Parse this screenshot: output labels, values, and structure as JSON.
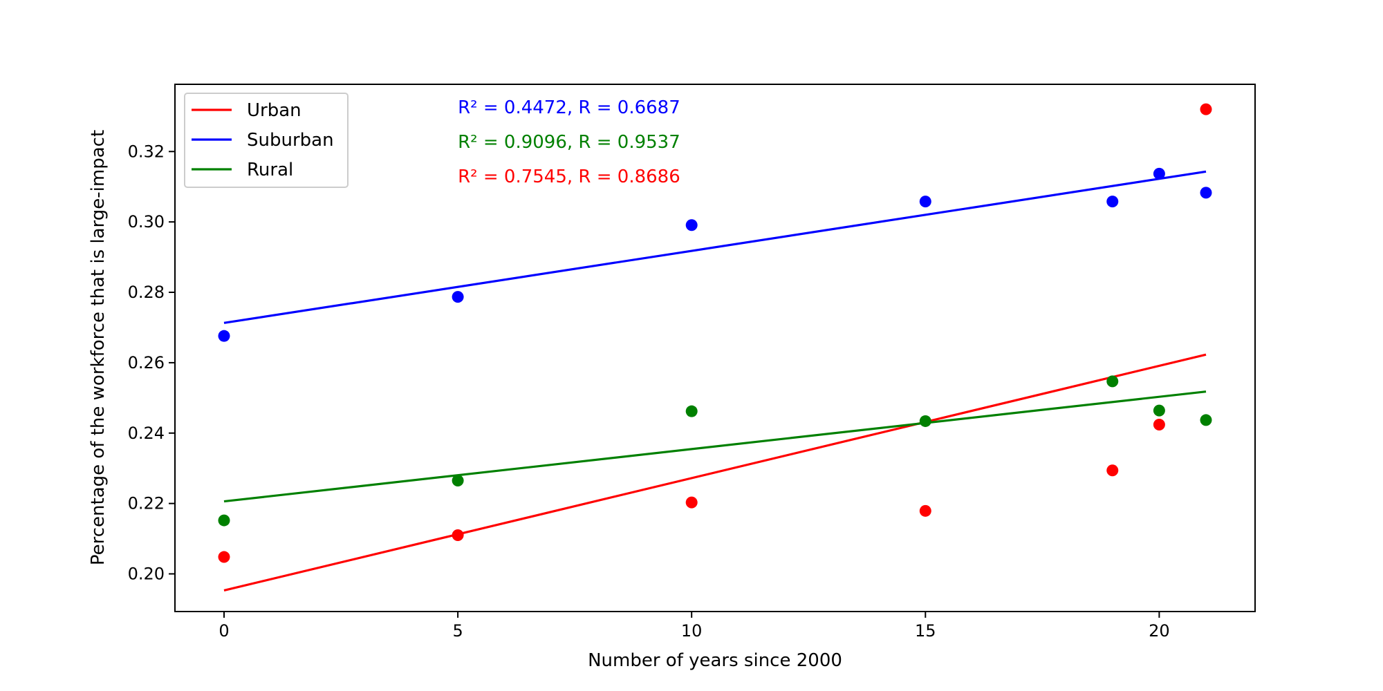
{
  "chart_data": {
    "type": "scatter",
    "xlabel": "Number of years since 2000",
    "ylabel": "Percentage of the workforce that is large-impact",
    "xlim": [
      -1.05,
      22.05
    ],
    "ylim": [
      0.1893,
      0.3391
    ],
    "x_ticks": [
      0,
      5,
      10,
      15,
      20
    ],
    "x_tick_labels": [
      "0",
      "5",
      "10",
      "15",
      "20"
    ],
    "y_ticks": [
      0.2,
      0.22,
      0.24,
      0.26,
      0.28,
      0.3,
      0.32
    ],
    "y_tick_labels": [
      "0.20",
      "0.22",
      "0.24",
      "0.26",
      "0.28",
      "0.30",
      "0.32"
    ],
    "grid": false,
    "legend_position": "upper-left",
    "x": [
      0,
      5,
      10,
      15,
      19,
      20,
      21
    ],
    "series": [
      {
        "name": "Urban",
        "color": "#ff0000",
        "values": [
          0.2048,
          0.211,
          0.2203,
          0.2179,
          0.2294,
          0.2424,
          0.332
        ],
        "fit_line": {
          "x": [
            0,
            21
          ],
          "y": [
            0.1953,
            0.2623
          ]
        }
      },
      {
        "name": "Suburban",
        "color": "#0000ff",
        "values": [
          0.2676,
          0.2787,
          0.2991,
          0.3058,
          0.3058,
          0.3137,
          0.3083
        ],
        "fit_line": {
          "x": [
            0,
            21
          ],
          "y": [
            0.2713,
            0.3143
          ]
        }
      },
      {
        "name": "Rural",
        "color": "#008000",
        "values": [
          0.2152,
          0.2265,
          0.2462,
          0.2434,
          0.2547,
          0.2464,
          0.2437
        ],
        "fit_line": {
          "x": [
            0,
            21
          ],
          "y": [
            0.2206,
            0.2518
          ]
        }
      }
    ],
    "annotations": [
      {
        "text": "R² = 0.4472, R = 0.6687",
        "color": "#0000ff"
      },
      {
        "text": "R² = 0.9096, R = 0.9537",
        "color": "#008000"
      },
      {
        "text": "R² = 0.7545, R = 0.8686",
        "color": "#ff0000"
      }
    ]
  }
}
